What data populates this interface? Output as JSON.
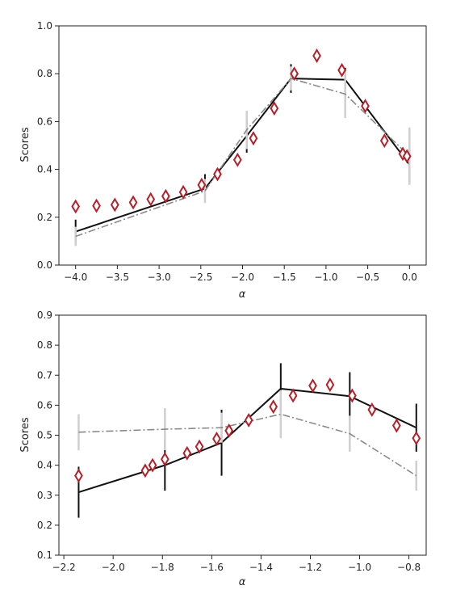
{
  "chart_data": [
    {
      "type": "line",
      "xlabel": "α",
      "ylabel": "Scores",
      "xlim": [
        -4.2,
        0.2
      ],
      "ylim": [
        0.0,
        1.0
      ],
      "xticks": [
        "−4.0",
        "−3.5",
        "−3.0",
        "−2.5",
        "−2.0",
        "−1.5",
        "−1.0",
        "−0.5",
        "0.0"
      ],
      "xtick_values": [
        -4.0,
        -3.5,
        -3.0,
        -2.5,
        -2.0,
        -1.5,
        -1.0,
        -0.5,
        0.0
      ],
      "yticks": [
        "0.0",
        "0.2",
        "0.4",
        "0.6",
        "0.8",
        "1.0"
      ],
      "ytick_values": [
        0.0,
        0.2,
        0.4,
        0.6,
        0.8,
        1.0
      ],
      "grid": false,
      "series": [
        {
          "style": "solid",
          "color": "#111111",
          "x": [
            -4.0,
            -2.45,
            -1.95,
            -1.42,
            -0.77,
            0.0
          ],
          "y": [
            0.14,
            0.32,
            0.54,
            0.78,
            0.775,
            0.42
          ],
          "err": [
            0.05,
            0.06,
            0.07,
            0.06,
            0.05,
            0.07
          ]
        },
        {
          "style": "dashdot",
          "color": "#8a8a8a",
          "x": [
            -4.0,
            -2.45,
            -1.95,
            -1.42,
            -0.77,
            0.0
          ],
          "y": [
            0.12,
            0.31,
            0.565,
            0.78,
            0.715,
            0.455
          ],
          "err": [
            0.04,
            0.05,
            0.08,
            0.05,
            0.1,
            0.12
          ]
        },
        {
          "style": "markers",
          "marker": "diamond",
          "color": "#b3202a",
          "x": [
            -4.0,
            -3.75,
            -3.53,
            -3.31,
            -3.1,
            -2.92,
            -2.71,
            -2.49,
            -2.3,
            -2.06,
            -1.87,
            -1.62,
            -1.38,
            -1.11,
            -0.81,
            -0.53,
            -0.3,
            -0.08,
            -0.03
          ],
          "y": [
            0.245,
            0.248,
            0.252,
            0.262,
            0.275,
            0.288,
            0.305,
            0.335,
            0.38,
            0.44,
            0.53,
            0.655,
            0.8,
            0.875,
            0.815,
            0.665,
            0.52,
            0.465,
            0.455
          ]
        }
      ]
    },
    {
      "type": "line",
      "xlabel": "α",
      "ylabel": "Scores",
      "xlim": [
        -2.22,
        -0.73
      ],
      "ylim": [
        0.1,
        0.9
      ],
      "xticks": [
        "−2.2",
        "−2.0",
        "−1.8",
        "−1.6",
        "−1.4",
        "−1.2",
        "−1.0",
        "−0.8"
      ],
      "xtick_values": [
        -2.2,
        -2.0,
        -1.8,
        -1.6,
        -1.4,
        -1.2,
        -1.0,
        -0.8
      ],
      "yticks": [
        "0.1",
        "0.2",
        "0.3",
        "0.4",
        "0.5",
        "0.6",
        "0.7",
        "0.8",
        "0.9"
      ],
      "ytick_values": [
        0.1,
        0.2,
        0.3,
        0.4,
        0.5,
        0.6,
        0.7,
        0.8,
        0.9
      ],
      "grid": false,
      "series": [
        {
          "style": "solid",
          "color": "#111111",
          "x": [
            -2.14,
            -1.79,
            -1.56,
            -1.32,
            -1.04,
            -0.77
          ],
          "y": [
            0.31,
            0.4,
            0.475,
            0.655,
            0.63,
            0.525
          ],
          "err": [
            0.085,
            0.085,
            0.11,
            0.085,
            0.08,
            0.08
          ]
        },
        {
          "style": "dashdot",
          "color": "#8a8a8a",
          "x": [
            -2.14,
            -1.79,
            -1.56,
            -1.32,
            -1.04,
            -0.77
          ],
          "y": [
            0.51,
            0.52,
            0.525,
            0.57,
            0.505,
            0.365
          ],
          "err": [
            0.06,
            0.07,
            0.05,
            0.08,
            0.06,
            0.05
          ]
        },
        {
          "style": "markers",
          "marker": "diamond",
          "color": "#b3202a",
          "x": [
            -2.14,
            -1.87,
            -1.84,
            -1.79,
            -1.7,
            -1.65,
            -1.58,
            -1.53,
            -1.45,
            -1.35,
            -1.27,
            -1.19,
            -1.12,
            -1.03,
            -0.95,
            -0.85,
            -0.77
          ],
          "y": [
            0.365,
            0.382,
            0.4,
            0.42,
            0.44,
            0.462,
            0.488,
            0.515,
            0.55,
            0.595,
            0.632,
            0.665,
            0.668,
            0.632,
            0.585,
            0.532,
            0.49
          ]
        }
      ]
    }
  ]
}
